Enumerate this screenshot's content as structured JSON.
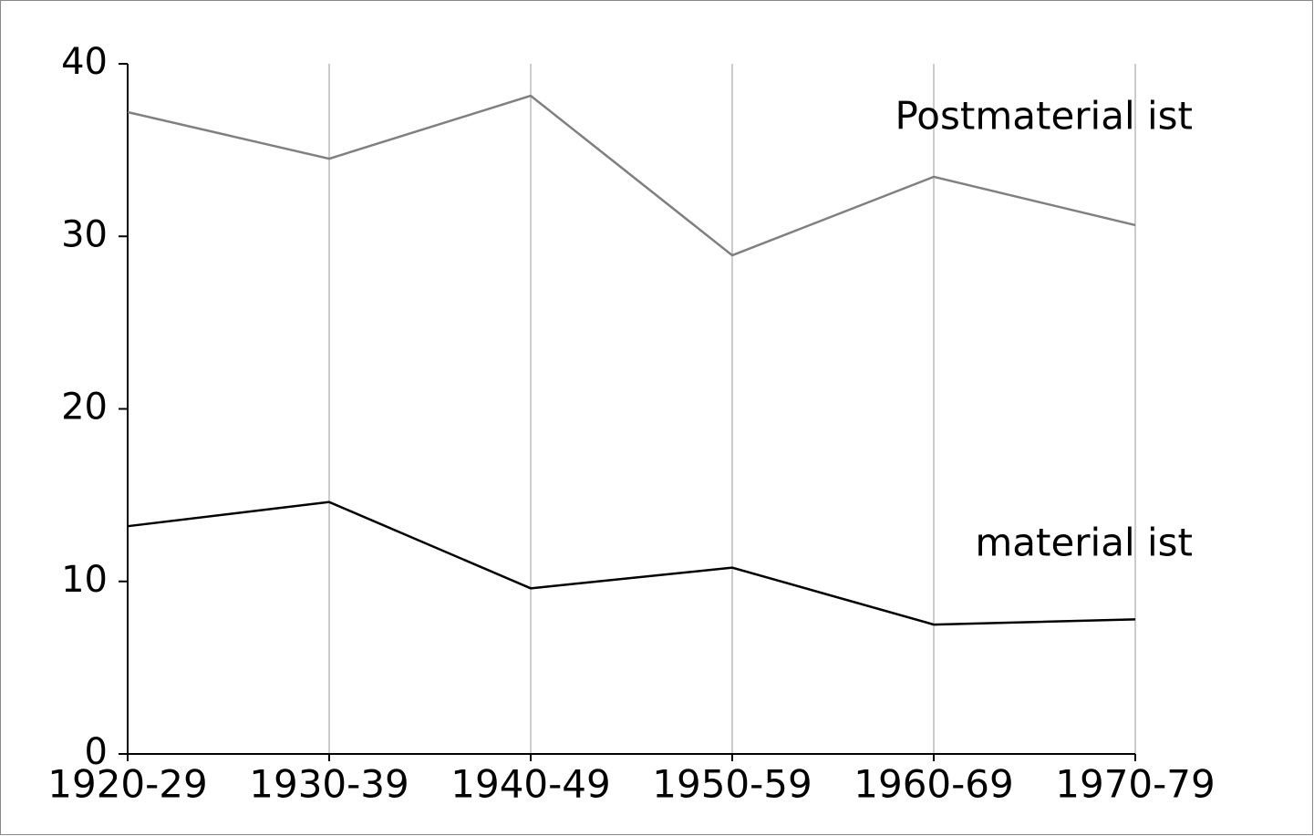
{
  "chart_data": {
    "type": "line",
    "categories": [
      "1920-29",
      "1930-39",
      "1940-49",
      "1950-59",
      "1960-69",
      "1970-79"
    ],
    "series": [
      {
        "name": "Postmaterial ist",
        "color": "#808080",
        "values": [
          37.2,
          34.5,
          38.15,
          28.9,
          33.45,
          30.65
        ]
      },
      {
        "name": "material ist",
        "color": "#000000",
        "values": [
          13.2,
          14.6,
          9.6,
          10.8,
          7.5,
          7.8
        ]
      }
    ],
    "ylim": [
      0,
      40
    ],
    "yticks": [
      0,
      10,
      20,
      30,
      40
    ],
    "grid": true
  }
}
